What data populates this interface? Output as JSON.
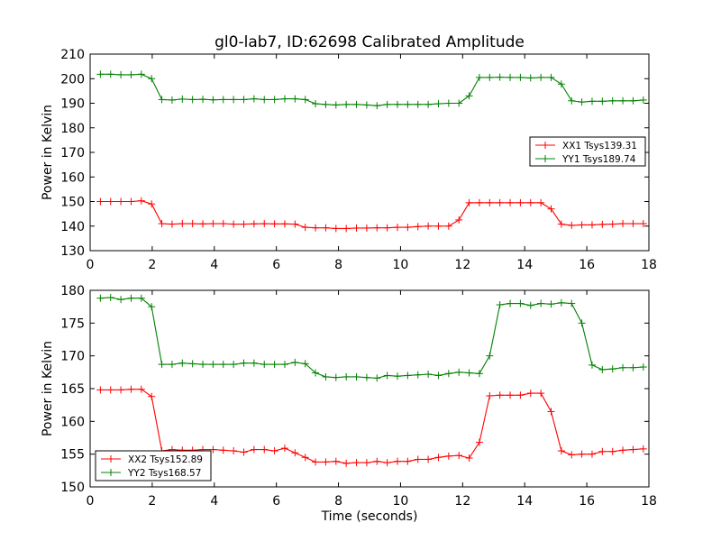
{
  "chart_data": [
    {
      "type": "line",
      "title": "gl0-lab7, ID:62698 Calibrated Amplitude",
      "xlabel": "",
      "ylabel": "Power in Kelvin",
      "xlim": [
        0,
        18
      ],
      "ylim": [
        130,
        210
      ],
      "xticks": [
        0,
        2,
        4,
        6,
        8,
        10,
        12,
        14,
        16,
        18
      ],
      "yticks": [
        130,
        140,
        150,
        160,
        170,
        180,
        190,
        200,
        210
      ],
      "grid": false,
      "legend_position": "right",
      "x": [
        0.33,
        0.66,
        0.99,
        1.32,
        1.65,
        1.98,
        2.31,
        2.64,
        2.97,
        3.3,
        3.63,
        3.96,
        4.29,
        4.62,
        4.95,
        5.28,
        5.61,
        5.94,
        6.27,
        6.6,
        6.93,
        7.26,
        7.59,
        7.92,
        8.25,
        8.58,
        8.91,
        9.24,
        9.57,
        9.9,
        10.23,
        10.56,
        10.89,
        11.22,
        11.55,
        11.88,
        12.21,
        12.54,
        12.87,
        13.2,
        13.53,
        13.86,
        14.19,
        14.52,
        14.85,
        15.18,
        15.51,
        15.84,
        16.17,
        16.5,
        16.83,
        17.16,
        17.49,
        17.82
      ],
      "series": [
        {
          "name": "XX1 Tsys139.31",
          "color": "#ff0000",
          "values": [
            150.0,
            150.0,
            150.0,
            150.0,
            150.3,
            149.0,
            141.0,
            140.8,
            141.0,
            141.0,
            140.9,
            141.0,
            141.0,
            140.8,
            140.8,
            140.9,
            141.0,
            140.9,
            140.9,
            140.8,
            139.5,
            139.3,
            139.3,
            139.0,
            139.0,
            139.2,
            139.2,
            139.3,
            139.3,
            139.5,
            139.5,
            139.8,
            140.0,
            140.0,
            140.0,
            142.5,
            149.5,
            149.5,
            149.5,
            149.5,
            149.5,
            149.5,
            149.5,
            149.5,
            147.0,
            140.8,
            140.3,
            140.5,
            140.5,
            140.7,
            140.8,
            141.0,
            141.0,
            141.0
          ]
        },
        {
          "name": "YY1 Tsys189.74",
          "color": "#008000",
          "values": [
            201.8,
            201.8,
            201.6,
            201.6,
            201.8,
            200.0,
            191.5,
            191.3,
            191.7,
            191.5,
            191.6,
            191.4,
            191.5,
            191.5,
            191.5,
            191.8,
            191.5,
            191.5,
            191.8,
            191.8,
            191.5,
            189.8,
            189.5,
            189.3,
            189.5,
            189.5,
            189.3,
            189.0,
            189.5,
            189.5,
            189.5,
            189.5,
            189.5,
            189.8,
            190.0,
            190.0,
            193.0,
            200.5,
            200.5,
            200.6,
            200.5,
            200.5,
            200.3,
            200.5,
            200.5,
            197.8,
            191.0,
            190.5,
            190.8,
            190.8,
            191.0,
            191.0,
            191.0,
            191.3
          ]
        }
      ]
    },
    {
      "type": "line",
      "title": "",
      "xlabel": "Time (seconds)",
      "ylabel": "Power in Kelvin",
      "xlim": [
        0,
        18
      ],
      "ylim": [
        150,
        180
      ],
      "xticks": [
        0,
        2,
        4,
        6,
        8,
        10,
        12,
        14,
        16,
        18
      ],
      "yticks": [
        150,
        155,
        160,
        165,
        170,
        175,
        180
      ],
      "grid": false,
      "legend_position": "lower-left",
      "x": [
        0.33,
        0.66,
        0.99,
        1.32,
        1.65,
        1.98,
        2.31,
        2.64,
        2.97,
        3.3,
        3.63,
        3.96,
        4.29,
        4.62,
        4.95,
        5.28,
        5.61,
        5.94,
        6.27,
        6.6,
        6.93,
        7.26,
        7.59,
        7.92,
        8.25,
        8.58,
        8.91,
        9.24,
        9.57,
        9.9,
        10.23,
        10.56,
        10.89,
        11.22,
        11.55,
        11.88,
        12.21,
        12.54,
        12.87,
        13.2,
        13.53,
        13.86,
        14.19,
        14.52,
        14.85,
        15.18,
        15.51,
        15.84,
        16.17,
        16.5,
        16.83,
        17.16,
        17.49,
        17.82
      ],
      "series": [
        {
          "name": "XX2 Tsys152.89",
          "color": "#ff0000",
          "values": [
            164.8,
            164.8,
            164.8,
            164.9,
            164.9,
            163.8,
            155.5,
            155.7,
            155.6,
            155.6,
            155.7,
            155.7,
            155.6,
            155.5,
            155.3,
            155.7,
            155.7,
            155.5,
            155.9,
            155.2,
            154.5,
            153.8,
            153.8,
            153.9,
            153.6,
            153.7,
            153.7,
            153.9,
            153.7,
            153.9,
            153.9,
            154.2,
            154.2,
            154.5,
            154.7,
            154.8,
            154.4,
            156.8,
            163.9,
            164.0,
            164.0,
            164.0,
            164.3,
            164.3,
            161.5,
            155.5,
            154.9,
            155.0,
            155.0,
            155.4,
            155.4,
            155.6,
            155.7,
            155.8
          ]
        },
        {
          "name": "YY2 Tsys168.57",
          "color": "#008000",
          "values": [
            178.8,
            178.9,
            178.6,
            178.8,
            178.8,
            177.5,
            168.7,
            168.7,
            168.9,
            168.8,
            168.7,
            168.7,
            168.7,
            168.7,
            168.9,
            168.9,
            168.7,
            168.7,
            168.7,
            169.0,
            168.8,
            167.4,
            166.8,
            166.7,
            166.8,
            166.8,
            166.7,
            166.6,
            167.0,
            166.9,
            167.0,
            167.1,
            167.2,
            167.0,
            167.3,
            167.5,
            167.4,
            167.3,
            170.0,
            177.8,
            178.0,
            178.0,
            177.7,
            178.0,
            177.9,
            178.1,
            178.0,
            175.0,
            168.6,
            167.9,
            168.0,
            168.2,
            168.2,
            168.3
          ]
        }
      ]
    }
  ]
}
